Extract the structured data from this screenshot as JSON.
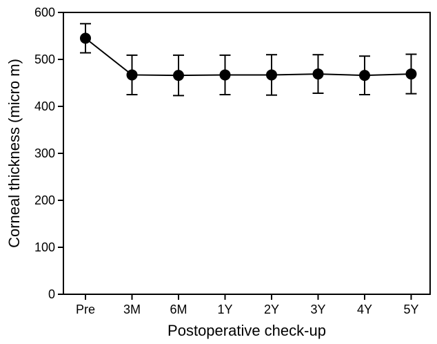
{
  "chart_data": {
    "type": "line",
    "title": "",
    "xlabel": "Postoperative check-up",
    "ylabel": "Corneal thickness (micro m)",
    "categories": [
      "Pre",
      "3M",
      "6M",
      "1Y",
      "2Y",
      "3Y",
      "4Y",
      "5Y"
    ],
    "ylim": [
      0,
      600
    ],
    "yticks": [
      0,
      100,
      200,
      300,
      400,
      500,
      600
    ],
    "grid": false,
    "series": [
      {
        "values": [
          545,
          467,
          466,
          467,
          467,
          469,
          466,
          469
        ],
        "error": [
          31,
          42,
          43,
          42,
          43,
          41,
          41,
          42
        ]
      }
    ],
    "colors": {
      "line": "#000000",
      "marker": "#000000"
    }
  }
}
